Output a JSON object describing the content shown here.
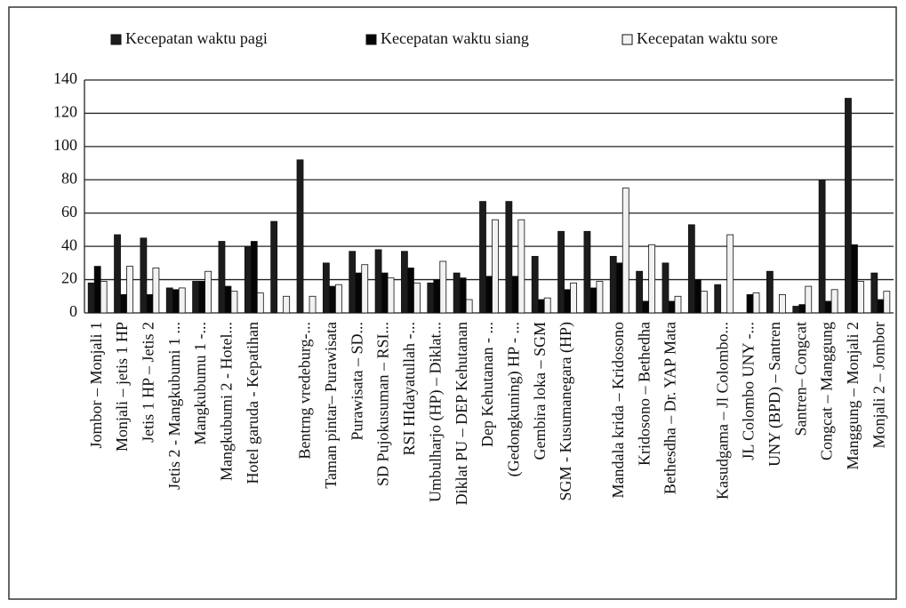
{
  "chart_data": {
    "type": "bar",
    "categories": [
      "Jombor – Monjali 1",
      "Monjali – jetis 1 HP",
      "Jetis 1 HP – Jetis 2",
      "Jetis 2 -  Mangkubumi 1 ...",
      "Mangkubumu 1 -...",
      "Mangkubumi 2 - Hotel...",
      "Hotel garuda - Kepatihan",
      null,
      "Bentrng vredeburg-...",
      "Taman pintar– Purawisata",
      "Purawisata – SD...",
      "SD Pujokusuman – RSI...",
      "RSI HIdayatullah -...",
      "Umbulharjo (HP) – Diklat...",
      "Diklat PU – DEP Kehutanan",
      "Dep Kehutanan - ...",
      "(Gedongkuning) HP  - ...",
      "Gembira loka – SGM",
      "SGM - Kusumanegara (HP)",
      null,
      "Mandala krida – Kridosono",
      "Kridosono – Bethedha",
      "Bethesdha – Dr. YAP Mata",
      null,
      "Kasudgama – Jl Colombo...",
      "JL Colombo UNY -...",
      "UNY (BPD) – Santren",
      "Santren– Congcat",
      "Congcat – Manggung",
      "Manggung  – Monjali 2",
      "Monjali 2 – Jombor"
    ],
    "series": [
      {
        "name": "Kecepatan waktu pagi",
        "color": "#1c1c1c",
        "values": [
          18,
          47,
          45,
          15,
          19,
          43,
          40,
          55,
          92,
          30,
          37,
          38,
          37,
          18,
          24,
          67,
          67,
          34,
          49,
          49,
          34,
          25,
          30,
          53,
          17,
          0,
          25,
          4,
          80,
          129,
          24
        ]
      },
      {
        "name": "Kecepatan waktu siang",
        "color": "#050505",
        "values": [
          28,
          11,
          11,
          14,
          19,
          16,
          43,
          0,
          0,
          16,
          24,
          24,
          27,
          20,
          21,
          22,
          22,
          8,
          14,
          15,
          30,
          7,
          7,
          20,
          0,
          11,
          0,
          5,
          7,
          41,
          8
        ]
      },
      {
        "name": "Kecepatan waktu sore",
        "color": "#f2f2f2",
        "values": [
          19,
          28,
          27,
          15,
          25,
          13,
          12,
          10,
          10,
          17,
          29,
          21,
          18,
          31,
          8,
          56,
          56,
          9,
          18,
          19,
          75,
          41,
          10,
          13,
          47,
          12,
          11,
          16,
          14,
          19,
          13
        ]
      }
    ],
    "ylim": [
      0,
      140
    ],
    "yticks": [
      0,
      20,
      40,
      60,
      80,
      100,
      120,
      140
    ],
    "grid": true,
    "legend": "top"
  }
}
